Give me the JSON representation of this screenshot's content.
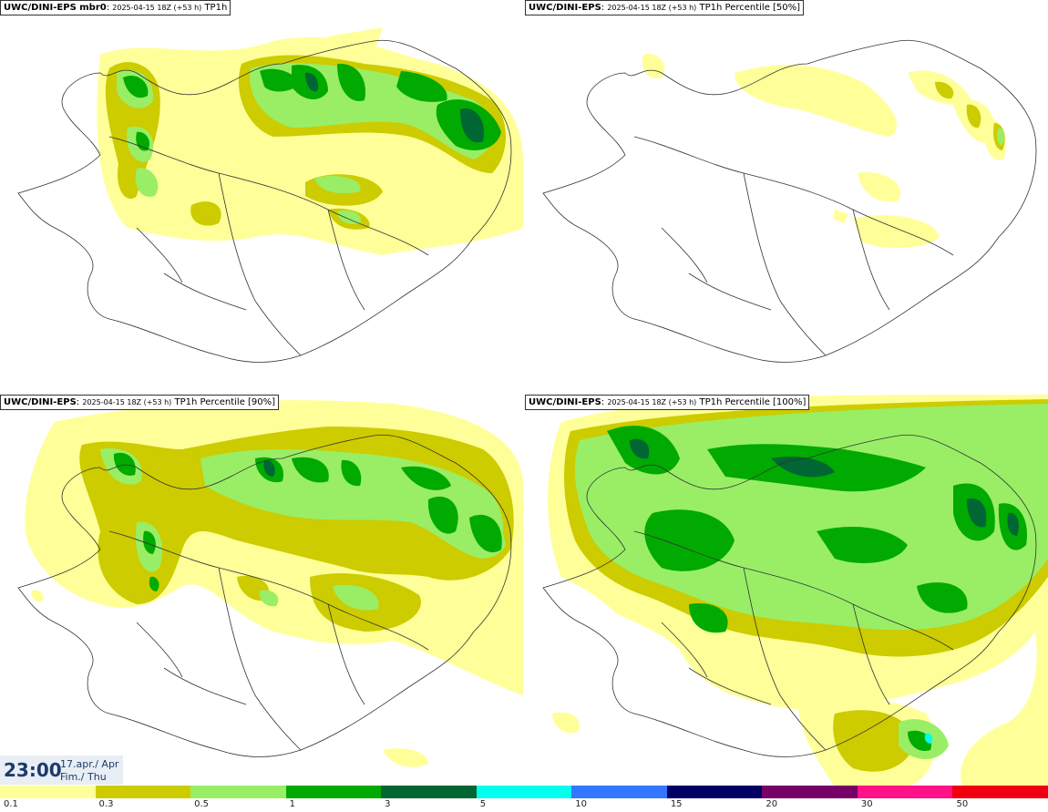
{
  "panels": [
    {
      "model": "UWC/DINI-EPS mbr0",
      "run": "2025-04-15 18Z (+53 h)",
      "field": "TP1h"
    },
    {
      "model": "UWC/DINI-EPS",
      "run": "2025-04-15 18Z (+53 h)",
      "field": "TP1h Percentile [50%]"
    },
    {
      "model": "UWC/DINI-EPS",
      "run": "2025-04-15 18Z (+53 h)",
      "field": "TP1h Percentile [90%]"
    },
    {
      "model": "UWC/DINI-EPS",
      "run": "2025-04-15 18Z (+53 h)",
      "field": "TP1h Percentile [100%]"
    }
  ],
  "clock": {
    "time": "23:00",
    "date": "17.apr./ Apr",
    "weekday": "Fim./ Thu"
  },
  "legend": {
    "ticks": [
      "0.1",
      "0.3",
      "0.5",
      "1",
      "3",
      "5",
      "10",
      "15",
      "20",
      "30",
      "50"
    ],
    "colors": [
      "#ffff99",
      "#cccc00",
      "#99ee66",
      "#00aa00",
      "#006633",
      "#00ffee",
      "#3377ff",
      "#000066",
      "#770066",
      "#ff1188",
      "#ee0011"
    ]
  },
  "map": {
    "region": "Iceland",
    "precip_colors": {
      "c1": "#ffff99",
      "c2": "#cccc00",
      "c3": "#99ee66",
      "c4": "#00aa00",
      "c5": "#006633",
      "c6": "#00ffee"
    }
  }
}
